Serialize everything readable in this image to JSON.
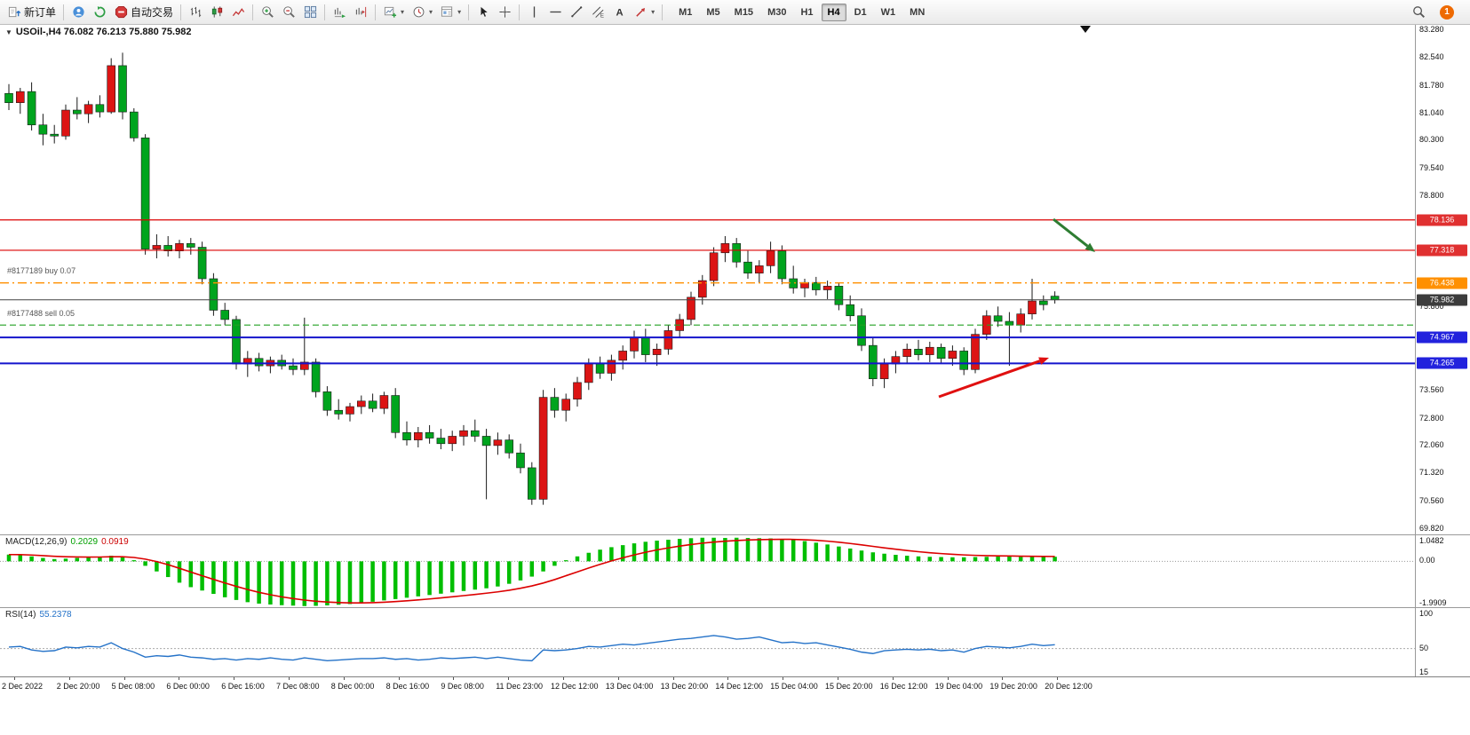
{
  "toolbar": {
    "new_order": "新订单",
    "auto_trading": "自动交易",
    "timeframes": [
      "M1",
      "M5",
      "M15",
      "M30",
      "H1",
      "H4",
      "D1",
      "W1",
      "MN"
    ],
    "active_timeframe": "H4",
    "notification_count": "1"
  },
  "time_axis": {
    "labels": [
      "2 Dec 2022",
      "2 Dec 20:00",
      "5 Dec 08:00",
      "6 Dec 00:00",
      "6 Dec 16:00",
      "7 Dec 08:00",
      "8 Dec 00:00",
      "8 Dec 16:00",
      "9 Dec 08:00",
      "11 Dec 23:00",
      "12 Dec 12:00",
      "13 Dec 04:00",
      "13 Dec 20:00",
      "14 Dec 12:00",
      "15 Dec 04:00",
      "15 Dec 20:00",
      "16 Dec 12:00",
      "19 Dec 04:00",
      "19 Dec 20:00",
      "20 Dec 12:00"
    ]
  },
  "chart_data": [
    {
      "type": "candlestick",
      "title": "USOil-,H4 76.082 76.213 75.880 75.982",
      "symbol": "USOil-",
      "timeframe": "H4",
      "ohlc": {
        "open": 76.082,
        "high": 76.213,
        "low": 75.88,
        "close": 75.982
      },
      "ylim": [
        69.7,
        83.4
      ],
      "bull_color": "#dc1414",
      "bear_color": "#00a41e",
      "axis_labels": [
        "83.280",
        "82.540",
        "81.780",
        "81.040",
        "80.300",
        "79.540",
        "78.800",
        "75.800",
        "73.560",
        "72.800",
        "72.060",
        "71.320",
        "70.560",
        "69.820"
      ],
      "price_labels": [
        {
          "text": "78.136",
          "price": 78.136,
          "bg": "#e03030"
        },
        {
          "text": "77.318",
          "price": 77.318,
          "bg": "#e03030"
        },
        {
          "text": "76.438",
          "price": 76.438,
          "bg": "#ff9000"
        },
        {
          "text": "75.982",
          "price": 75.982,
          "bg": "#3c3c3c"
        },
        {
          "text": "74.967",
          "price": 74.967,
          "bg": "#2222dd"
        },
        {
          "text": "74.265",
          "price": 74.265,
          "bg": "#2222dd"
        }
      ],
      "hlines": [
        {
          "price": 78.136,
          "color": "#dc0000",
          "width": 1.2,
          "dash": ""
        },
        {
          "price": 77.318,
          "color": "#dc0000",
          "width": 1.2,
          "dash": ""
        },
        {
          "price": 76.438,
          "color": "#ff9000",
          "width": 1.4,
          "dash": "10 4 2 4"
        },
        {
          "price": 75.982,
          "color": "#444444",
          "width": 1,
          "dash": ""
        },
        {
          "price": 75.3,
          "color": "#22a022",
          "width": 1.2,
          "dash": "7 4"
        },
        {
          "price": 74.967,
          "color": "#1414cc",
          "width": 2,
          "dash": ""
        },
        {
          "price": 74.265,
          "color": "#1414cc",
          "width": 2,
          "dash": ""
        }
      ],
      "orders": [
        {
          "text": "#8177189 buy 0.07",
          "price": 76.62
        },
        {
          "text": "#8177488 sell 0.05",
          "price": 75.48
        }
      ],
      "annotations": [
        {
          "type": "arrow",
          "from": [
            1186,
            219
          ],
          "to": [
            1233,
            256
          ],
          "color": "#2e7d32",
          "width": 3
        },
        {
          "type": "arrow",
          "from": [
            1057,
            419
          ],
          "to": [
            1181,
            375
          ],
          "color": "#e01010",
          "width": 3
        }
      ],
      "shift_marker_x": 1222,
      "candles": [
        [
          81.55,
          81.8,
          81.1,
          81.3
        ],
        [
          81.3,
          81.7,
          81.0,
          81.6
        ],
        [
          81.6,
          81.85,
          80.55,
          80.7
        ],
        [
          80.7,
          81.0,
          80.15,
          80.45
        ],
        [
          80.45,
          80.7,
          80.2,
          80.4
        ],
        [
          80.4,
          81.25,
          80.3,
          81.1
        ],
        [
          81.1,
          81.45,
          80.85,
          81.0
        ],
        [
          81.0,
          81.35,
          80.75,
          81.25
        ],
        [
          81.25,
          81.5,
          80.9,
          81.05
        ],
        [
          81.05,
          82.5,
          81.0,
          82.3
        ],
        [
          82.3,
          82.65,
          80.85,
          81.05
        ],
        [
          81.05,
          81.15,
          80.25,
          80.35
        ],
        [
          80.35,
          80.45,
          77.2,
          77.35
        ],
        [
          77.35,
          77.75,
          77.1,
          77.45
        ],
        [
          77.45,
          77.7,
          77.15,
          77.3
        ],
        [
          77.3,
          77.6,
          77.1,
          77.5
        ],
        [
          77.5,
          77.65,
          77.2,
          77.4
        ],
        [
          77.4,
          77.55,
          76.4,
          76.55
        ],
        [
          76.55,
          76.7,
          75.55,
          75.7
        ],
        [
          75.7,
          75.9,
          75.3,
          75.45
        ],
        [
          75.45,
          75.55,
          74.1,
          74.25
        ],
        [
          74.25,
          74.6,
          73.9,
          74.4
        ],
        [
          74.4,
          74.55,
          74.05,
          74.2
        ],
        [
          74.2,
          74.45,
          74.0,
          74.35
        ],
        [
          74.35,
          74.5,
          74.1,
          74.2
        ],
        [
          74.2,
          74.4,
          73.95,
          74.1
        ],
        [
          74.1,
          75.5,
          73.95,
          74.3
        ],
        [
          74.3,
          74.4,
          73.35,
          73.5
        ],
        [
          73.5,
          73.65,
          72.85,
          73.0
        ],
        [
          73.0,
          73.3,
          72.75,
          72.9
        ],
        [
          72.9,
          73.2,
          72.7,
          73.1
        ],
        [
          73.1,
          73.4,
          72.9,
          73.25
        ],
        [
          73.25,
          73.45,
          72.95,
          73.05
        ],
        [
          73.05,
          73.5,
          72.9,
          73.4
        ],
        [
          73.4,
          73.6,
          72.25,
          72.4
        ],
        [
          72.4,
          72.7,
          72.05,
          72.2
        ],
        [
          72.2,
          72.55,
          72.0,
          72.4
        ],
        [
          72.4,
          72.6,
          72.1,
          72.25
        ],
        [
          72.25,
          72.5,
          71.95,
          72.1
        ],
        [
          72.1,
          72.45,
          71.9,
          72.3
        ],
        [
          72.3,
          72.6,
          72.05,
          72.45
        ],
        [
          72.45,
          72.75,
          72.15,
          72.3
        ],
        [
          72.3,
          72.5,
          70.6,
          72.05
        ],
        [
          72.05,
          72.4,
          71.8,
          72.2
        ],
        [
          72.2,
          72.35,
          71.7,
          71.85
        ],
        [
          71.85,
          72.1,
          71.3,
          71.45
        ],
        [
          71.45,
          71.6,
          70.45,
          70.6
        ],
        [
          70.6,
          73.55,
          70.45,
          73.35
        ],
        [
          73.35,
          73.6,
          72.8,
          73.0
        ],
        [
          73.0,
          73.45,
          72.7,
          73.3
        ],
        [
          73.3,
          73.9,
          73.1,
          73.75
        ],
        [
          73.75,
          74.4,
          73.55,
          74.25
        ],
        [
          74.25,
          74.45,
          73.85,
          74.0
        ],
        [
          74.0,
          74.5,
          73.8,
          74.35
        ],
        [
          74.35,
          74.75,
          74.1,
          74.6
        ],
        [
          74.6,
          75.15,
          74.4,
          74.95
        ],
        [
          74.95,
          75.2,
          74.3,
          74.5
        ],
        [
          74.5,
          74.8,
          74.2,
          74.65
        ],
        [
          74.65,
          75.3,
          74.5,
          75.15
        ],
        [
          75.15,
          75.6,
          74.95,
          75.45
        ],
        [
          75.45,
          76.2,
          75.3,
          76.05
        ],
        [
          76.05,
          76.65,
          75.85,
          76.5
        ],
        [
          76.5,
          77.4,
          76.35,
          77.25
        ],
        [
          77.25,
          77.7,
          77.0,
          77.5
        ],
        [
          77.5,
          77.65,
          76.85,
          77.0
        ],
        [
          77.0,
          77.3,
          76.55,
          76.7
        ],
        [
          76.7,
          77.05,
          76.45,
          76.9
        ],
        [
          76.9,
          77.55,
          76.7,
          77.3
        ],
        [
          77.3,
          77.45,
          76.4,
          76.55
        ],
        [
          76.55,
          76.9,
          76.15,
          76.3
        ],
        [
          76.3,
          76.55,
          76.05,
          76.45
        ],
        [
          76.45,
          76.6,
          76.1,
          76.25
        ],
        [
          76.25,
          76.5,
          76.0,
          76.35
        ],
        [
          76.35,
          76.45,
          75.7,
          75.85
        ],
        [
          75.85,
          76.1,
          75.4,
          75.55
        ],
        [
          75.55,
          75.75,
          74.6,
          74.75
        ],
        [
          74.75,
          74.95,
          73.65,
          73.85
        ],
        [
          73.85,
          74.4,
          73.6,
          74.25
        ],
        [
          74.25,
          74.6,
          74.0,
          74.45
        ],
        [
          74.45,
          74.8,
          74.25,
          74.65
        ],
        [
          74.65,
          74.9,
          74.35,
          74.5
        ],
        [
          74.5,
          74.85,
          74.3,
          74.7
        ],
        [
          74.7,
          74.8,
          74.25,
          74.4
        ],
        [
          74.4,
          74.75,
          74.2,
          74.6
        ],
        [
          74.6,
          74.7,
          73.95,
          74.1
        ],
        [
          74.1,
          75.2,
          74.0,
          75.05
        ],
        [
          75.05,
          75.7,
          74.9,
          75.55
        ],
        [
          75.55,
          75.8,
          75.25,
          75.4
        ],
        [
          75.4,
          75.65,
          74.2,
          75.3
        ],
        [
          75.3,
          75.75,
          75.1,
          75.6
        ],
        [
          75.6,
          76.55,
          75.45,
          75.95
        ],
        [
          75.95,
          76.1,
          75.7,
          75.85
        ],
        [
          76.08,
          76.21,
          75.88,
          75.98
        ]
      ]
    },
    {
      "type": "bar",
      "label": "MACD(12,26,9)",
      "value_main": "0.2029",
      "value_signal": "0.0919",
      "ylim": [
        -2.08,
        1.12
      ],
      "bar_color": "#00be00",
      "signal_color": "#dc0000",
      "axis_labels": [
        {
          "text": "1.0482",
          "v": 1.0482
        },
        {
          "text": "0.00",
          "v": 0
        },
        {
          "text": "-1.9909",
          "v": -1.9909
        }
      ],
      "values": [
        0.3,
        0.28,
        0.22,
        0.15,
        0.1,
        0.12,
        0.15,
        0.18,
        0.2,
        0.25,
        0.2,
        0.05,
        -0.2,
        -0.45,
        -0.7,
        -0.95,
        -1.15,
        -1.3,
        -1.45,
        -1.6,
        -1.72,
        -1.82,
        -1.88,
        -1.92,
        -1.95,
        -1.97,
        -1.99,
        -1.98,
        -1.96,
        -1.93,
        -1.9,
        -1.86,
        -1.8,
        -1.74,
        -1.68,
        -1.62,
        -1.56,
        -1.5,
        -1.44,
        -1.38,
        -1.32,
        -1.26,
        -1.2,
        -1.12,
        -1.0,
        -0.85,
        -0.68,
        -0.45,
        -0.2,
        0.05,
        0.22,
        0.38,
        0.52,
        0.63,
        0.72,
        0.8,
        0.87,
        0.92,
        0.96,
        1.0,
        1.03,
        1.05,
        1.05,
        1.04,
        1.05,
        1.04,
        1.03,
        1.02,
        1.0,
        0.96,
        0.9,
        0.83,
        0.75,
        0.66,
        0.57,
        0.48,
        0.4,
        0.34,
        0.29,
        0.25,
        0.22,
        0.2,
        0.19,
        0.18,
        0.18,
        0.19,
        0.2,
        0.21,
        0.21,
        0.2,
        0.2,
        0.2,
        0.2029
      ]
    },
    {
      "type": "line",
      "label": "RSI(14)",
      "value": "55.2378",
      "ylim": [
        10,
        105
      ],
      "color": "#2472c8",
      "levels": [
        50
      ],
      "axis_labels": [
        {
          "text": "100",
          "v": 100
        },
        {
          "text": "50",
          "v": 50
        },
        {
          "text": "15",
          "v": 15
        }
      ],
      "values": [
        52,
        53,
        48,
        46,
        47,
        52,
        51,
        53,
        52,
        58,
        50,
        45,
        38,
        40,
        39,
        41,
        38,
        37,
        35,
        36,
        34,
        36,
        35,
        37,
        35,
        34,
        37,
        35,
        33,
        34,
        35,
        36,
        36,
        37,
        35,
        36,
        34,
        35,
        37,
        36,
        37,
        38,
        36,
        38,
        36,
        34,
        33,
        48,
        47,
        48,
        50,
        53,
        52,
        54,
        56,
        55,
        57,
        59,
        61,
        63,
        64,
        66,
        68,
        66,
        63,
        64,
        66,
        62,
        58,
        59,
        57,
        58,
        55,
        52,
        49,
        45,
        43,
        47,
        48,
        49,
        48,
        49,
        47,
        48,
        45,
        50,
        53,
        52,
        51,
        53,
        56,
        54,
        55.24
      ]
    }
  ]
}
